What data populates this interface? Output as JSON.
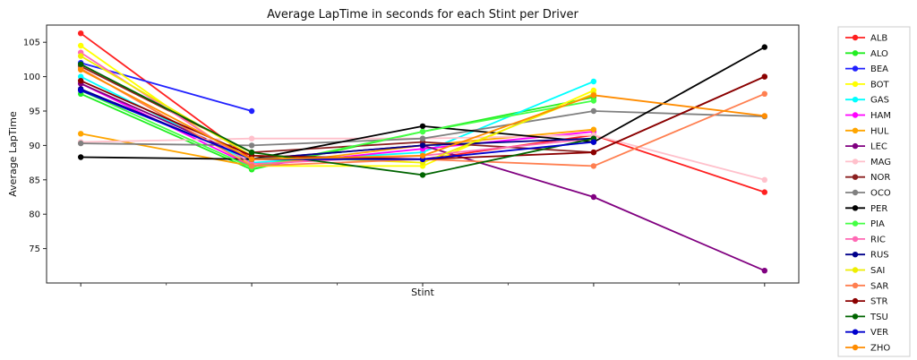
{
  "chart_data": {
    "type": "line",
    "title": "Average LapTime in seconds for each Stint per Driver",
    "xlabel": "Stint",
    "ylabel": "Average LapTime",
    "x": [
      1,
      2,
      3,
      4,
      5
    ],
    "ylim": [
      70,
      107.5
    ],
    "yticks": [
      75,
      80,
      85,
      90,
      95,
      100,
      105
    ],
    "grid": false,
    "legend_position": "right-outside",
    "series": [
      {
        "name": "ALB",
        "color": "#ff2020",
        "values": [
          106.3,
          88.0,
          88.0,
          91.5,
          83.2
        ]
      },
      {
        "name": "ALO",
        "color": "#22ee22",
        "values": [
          97.5,
          86.5,
          92.0,
          97.0,
          null
        ]
      },
      {
        "name": "BEA",
        "color": "#2020ff",
        "values": [
          102.0,
          95.0,
          null,
          null,
          null
        ]
      },
      {
        "name": "BOT",
        "color": "#ffff00",
        "values": [
          104.5,
          87.0,
          87.0,
          98.0,
          null
        ]
      },
      {
        "name": "GAS",
        "color": "#00ffff",
        "values": [
          100.0,
          87.5,
          89.0,
          99.3,
          null
        ]
      },
      {
        "name": "HAM",
        "color": "#ff00ff",
        "values": [
          99.0,
          87.0,
          89.5,
          92.0,
          null
        ]
      },
      {
        "name": "HUL",
        "color": "#ffa500",
        "values": [
          91.7,
          87.0,
          90.0,
          92.3,
          null
        ]
      },
      {
        "name": "LEC",
        "color": "#800080",
        "values": [
          99.0,
          88.0,
          90.0,
          82.5,
          71.8
        ]
      },
      {
        "name": "MAG",
        "color": "#ffc0cb",
        "values": [
          90.5,
          91.0,
          91.0,
          91.5,
          85.0
        ]
      },
      {
        "name": "NOR",
        "color": "#8b2020",
        "values": [
          101.5,
          89.0,
          90.5,
          89.0,
          100.0
        ]
      },
      {
        "name": "OCO",
        "color": "#808080",
        "values": [
          90.3,
          90.0,
          91.0,
          95.0,
          94.2
        ]
      },
      {
        "name": "PER",
        "color": "#000000",
        "values": [
          88.3,
          88.0,
          92.8,
          90.5,
          104.3
        ]
      },
      {
        "name": "PIA",
        "color": "#44ff44",
        "values": [
          98.0,
          86.8,
          92.0,
          96.5,
          null
        ]
      },
      {
        "name": "RIC",
        "color": "#ff69b4",
        "values": [
          103.5,
          87.3,
          88.5,
          91.0,
          null
        ]
      },
      {
        "name": "RUS",
        "color": "#00008b",
        "values": [
          98.2,
          88.0,
          90.0,
          91.0,
          null
        ]
      },
      {
        "name": "SAI",
        "color": "#eeee00",
        "values": [
          103.0,
          88.5,
          87.5,
          97.5,
          null
        ]
      },
      {
        "name": "SAR",
        "color": "#ff7f50",
        "values": [
          101.2,
          87.0,
          88.0,
          87.0,
          97.5
        ]
      },
      {
        "name": "STR",
        "color": "#8b0000",
        "values": [
          99.4,
          88.5,
          88.0,
          89.0,
          100.0
        ]
      },
      {
        "name": "TSU",
        "color": "#006400",
        "values": [
          101.8,
          89.0,
          85.7,
          91.0,
          null
        ]
      },
      {
        "name": "VER",
        "color": "#0000cd",
        "values": [
          98.0,
          88.0,
          88.0,
          90.5,
          null
        ]
      },
      {
        "name": "ZHO",
        "color": "#ff8c00",
        "values": [
          101.0,
          88.0,
          88.5,
          97.3,
          94.3
        ]
      }
    ]
  }
}
